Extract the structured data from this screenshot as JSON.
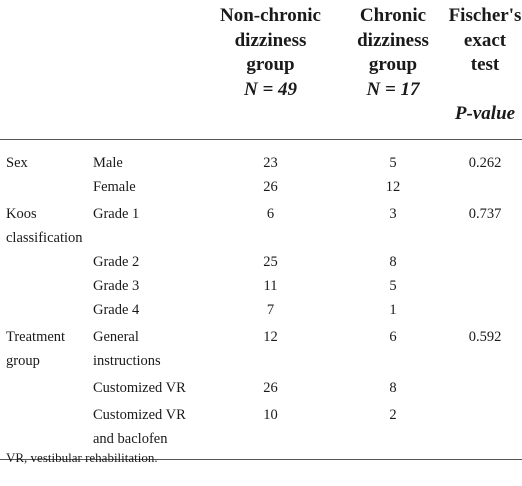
{
  "header": {
    "col1": "",
    "col2": "",
    "col3": [
      "Non-chronic",
      "dizziness",
      "group",
      "N = 49"
    ],
    "col4": [
      "Chronic",
      "dizziness",
      "group",
      "N = 17"
    ],
    "col5": [
      "Fischer's",
      "exact test",
      "",
      "P-value"
    ]
  },
  "rows": [
    {
      "cat": "Sex",
      "sub": "Male",
      "a": "23",
      "b": "5",
      "p": "0.262"
    },
    {
      "cat": "",
      "sub": "Female",
      "a": "26",
      "b": "12",
      "p": ""
    },
    {
      "cat": "Koos classification",
      "sub": "Grade 1",
      "a": "6",
      "b": "3",
      "p": "0.737"
    },
    {
      "cat": "",
      "sub": "Grade 2",
      "a": "25",
      "b": "8",
      "p": ""
    },
    {
      "cat": "",
      "sub": "Grade 3",
      "a": "11",
      "b": "5",
      "p": ""
    },
    {
      "cat": "",
      "sub": "Grade 4",
      "a": "7",
      "b": "1",
      "p": ""
    },
    {
      "cat": "Treatment group",
      "sub": "General instructions",
      "a": "12",
      "b": "6",
      "p": "0.592"
    },
    {
      "cat": "",
      "sub": "Customized VR",
      "a": "26",
      "b": "8",
      "p": ""
    },
    {
      "cat": "",
      "sub": "Customized VR and baclofen",
      "a": "10",
      "b": "2",
      "p": ""
    }
  ],
  "footnote": "VR, vestibular rehabilitation."
}
